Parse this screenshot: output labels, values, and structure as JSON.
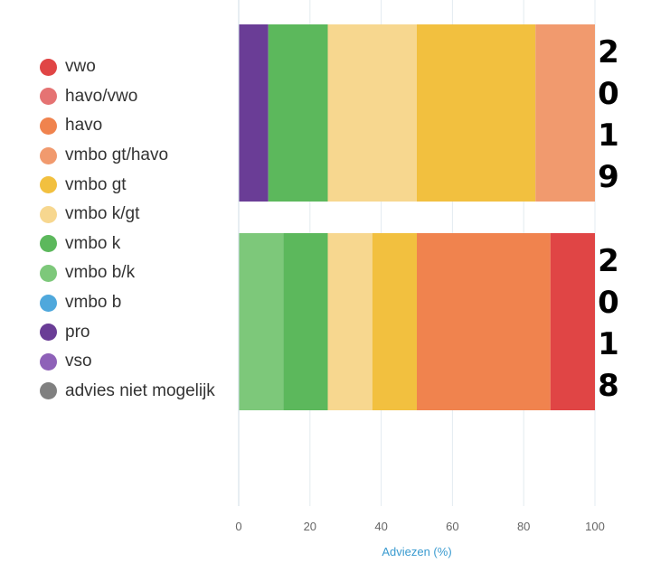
{
  "chart_data": {
    "type": "bar",
    "orientation": "horizontal",
    "stacked": true,
    "xlabel": "Adviezen (%)",
    "xlim": [
      0,
      100
    ],
    "xticks": [
      "0",
      "20",
      "40",
      "60",
      "80",
      "100"
    ],
    "grid": true,
    "legend_position": "left",
    "categories": [
      "2019",
      "2018"
    ],
    "legend": [
      {
        "name": "vwo",
        "color": "#e04545"
      },
      {
        "name": "havo/vwo",
        "color": "#e57373"
      },
      {
        "name": "havo",
        "color": "#f0834e"
      },
      {
        "name": "vmbo gt/havo",
        "color": "#f19a6e"
      },
      {
        "name": "vmbo gt",
        "color": "#f2c03f"
      },
      {
        "name": "vmbo k/gt",
        "color": "#f7d78f"
      },
      {
        "name": "vmbo k",
        "color": "#5cb85c"
      },
      {
        "name": "vmbo b/k",
        "color": "#7dc87a"
      },
      {
        "name": "vmbo b",
        "color": "#4fa8dc"
      },
      {
        "name": "pro",
        "color": "#6a3d96"
      },
      {
        "name": "vso",
        "color": "#8e61b8"
      },
      {
        "name": "advies niet mogelijk",
        "color": "#808080"
      }
    ],
    "bars": [
      {
        "category": "2019",
        "label_chars": [
          "2",
          "0",
          "1",
          "9"
        ],
        "segments": [
          {
            "series": "pro",
            "value": 8.3
          },
          {
            "series": "vmbo k",
            "value": 16.7
          },
          {
            "series": "vmbo k/gt",
            "value": 25.0
          },
          {
            "series": "vmbo gt",
            "value": 33.3
          },
          {
            "series": "vmbo gt/havo",
            "value": 16.7
          }
        ]
      },
      {
        "category": "2018",
        "label_chars": [
          "2",
          "0",
          "1",
          "8"
        ],
        "segments": [
          {
            "series": "vmbo b/k",
            "value": 12.5
          },
          {
            "series": "vmbo k",
            "value": 12.5
          },
          {
            "series": "vmbo k/gt",
            "value": 12.5
          },
          {
            "series": "vmbo gt",
            "value": 12.5
          },
          {
            "series": "havo",
            "value": 37.5
          },
          {
            "series": "vwo",
            "value": 12.5
          }
        ]
      }
    ]
  }
}
